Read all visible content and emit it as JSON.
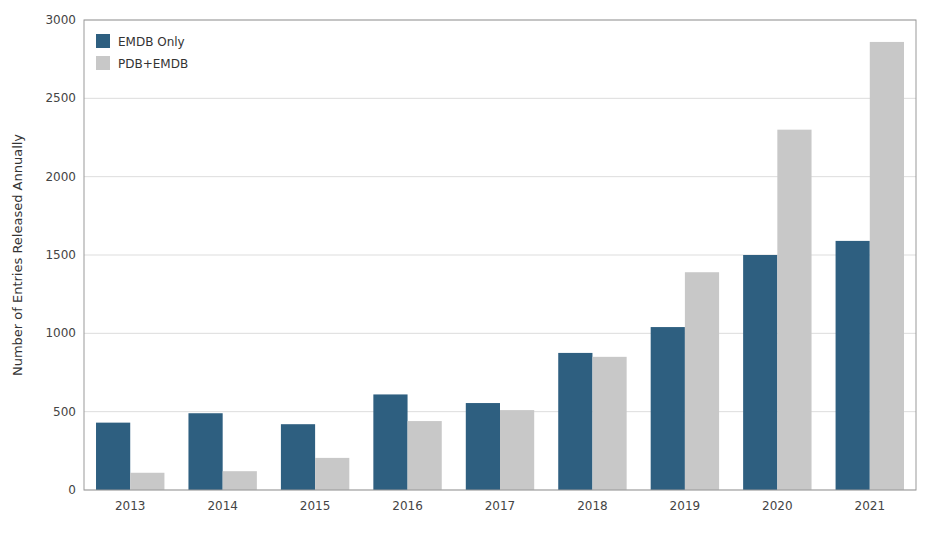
{
  "chart_data": {
    "type": "bar",
    "categories": [
      "2013",
      "2014",
      "2015",
      "2016",
      "2017",
      "2018",
      "2019",
      "2020",
      "2021"
    ],
    "series": [
      {
        "name": "EMDB Only",
        "color": "#2E5F80",
        "values": [
          430,
          490,
          420,
          610,
          555,
          875,
          1040,
          1500,
          1590
        ]
      },
      {
        "name": "PDB+EMDB",
        "color": "#C8C8C8",
        "values": [
          110,
          120,
          205,
          440,
          510,
          850,
          1390,
          2300,
          2860
        ]
      }
    ],
    "ylabel": "Number of Entries Released Annually",
    "ylim": [
      0,
      3000
    ],
    "yticks": [
      0,
      500,
      1000,
      1500,
      2000,
      2500,
      3000
    ],
    "grid": true,
    "legend": "upper left"
  }
}
